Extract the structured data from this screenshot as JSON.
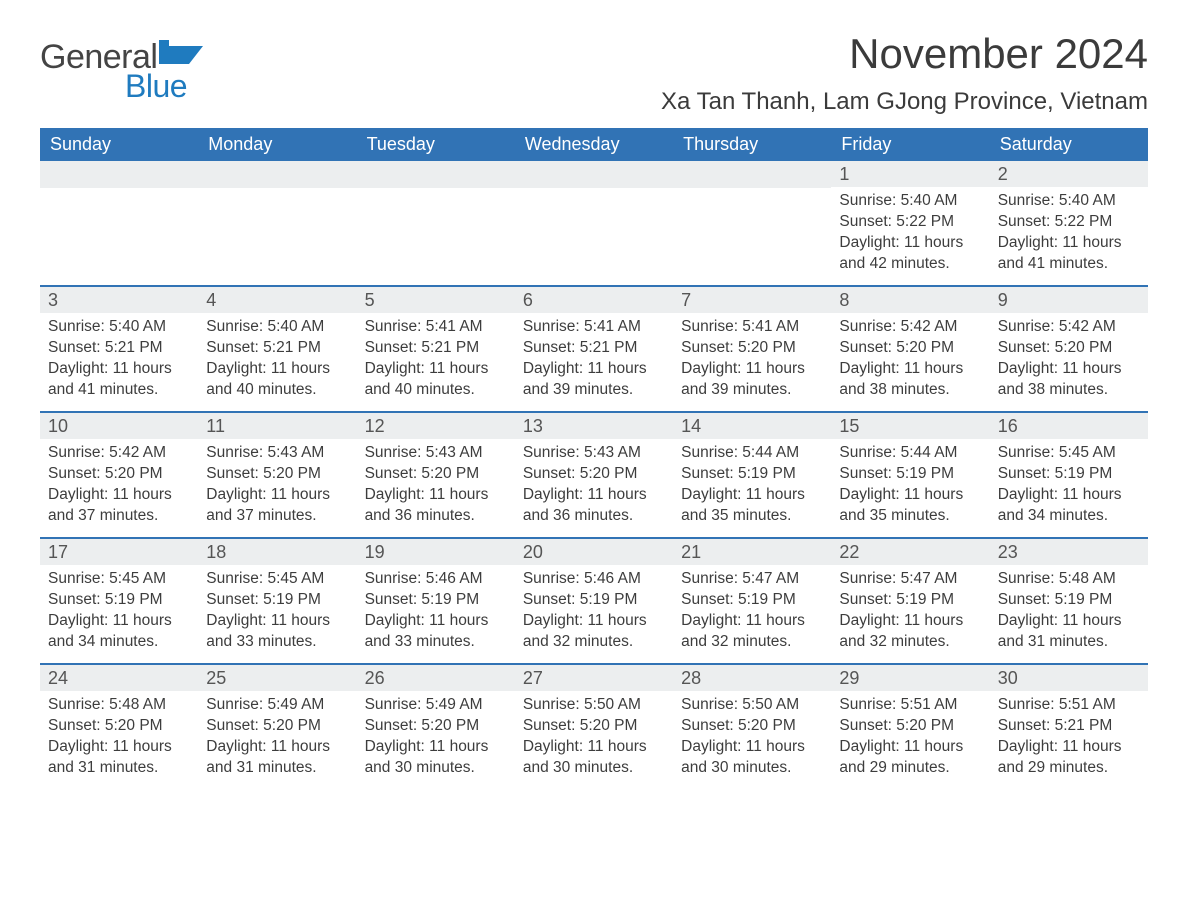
{
  "brand": {
    "word1": "General",
    "word2": "Blue",
    "accent_color": "#1f7bbf"
  },
  "title": {
    "month": "November 2024",
    "location": "Xa Tan Thanh, Lam GJong Province, Vietnam"
  },
  "colors": {
    "header_bg": "#3173b5",
    "header_text": "#ffffff",
    "daynum_bg": "#eceeef",
    "week_divider": "#3173b5",
    "body_text": "#3d3d3d",
    "page_bg": "#ffffff"
  },
  "typography": {
    "month_title_fontsize": 42,
    "location_fontsize": 24,
    "dow_fontsize": 18,
    "daynum_fontsize": 18,
    "body_fontsize": 15.5
  },
  "dow": [
    "Sunday",
    "Monday",
    "Tuesday",
    "Wednesday",
    "Thursday",
    "Friday",
    "Saturday"
  ],
  "labels": {
    "sunrise": "Sunrise:",
    "sunset": "Sunset:",
    "daylight": "Daylight:"
  },
  "weeks": [
    [
      null,
      null,
      null,
      null,
      null,
      {
        "n": "1",
        "sunrise": "5:40 AM",
        "sunset": "5:22 PM",
        "daylight": "11 hours and 42 minutes."
      },
      {
        "n": "2",
        "sunrise": "5:40 AM",
        "sunset": "5:22 PM",
        "daylight": "11 hours and 41 minutes."
      }
    ],
    [
      {
        "n": "3",
        "sunrise": "5:40 AM",
        "sunset": "5:21 PM",
        "daylight": "11 hours and 41 minutes."
      },
      {
        "n": "4",
        "sunrise": "5:40 AM",
        "sunset": "5:21 PM",
        "daylight": "11 hours and 40 minutes."
      },
      {
        "n": "5",
        "sunrise": "5:41 AM",
        "sunset": "5:21 PM",
        "daylight": "11 hours and 40 minutes."
      },
      {
        "n": "6",
        "sunrise": "5:41 AM",
        "sunset": "5:21 PM",
        "daylight": "11 hours and 39 minutes."
      },
      {
        "n": "7",
        "sunrise": "5:41 AM",
        "sunset": "5:20 PM",
        "daylight": "11 hours and 39 minutes."
      },
      {
        "n": "8",
        "sunrise": "5:42 AM",
        "sunset": "5:20 PM",
        "daylight": "11 hours and 38 minutes."
      },
      {
        "n": "9",
        "sunrise": "5:42 AM",
        "sunset": "5:20 PM",
        "daylight": "11 hours and 38 minutes."
      }
    ],
    [
      {
        "n": "10",
        "sunrise": "5:42 AM",
        "sunset": "5:20 PM",
        "daylight": "11 hours and 37 minutes."
      },
      {
        "n": "11",
        "sunrise": "5:43 AM",
        "sunset": "5:20 PM",
        "daylight": "11 hours and 37 minutes."
      },
      {
        "n": "12",
        "sunrise": "5:43 AM",
        "sunset": "5:20 PM",
        "daylight": "11 hours and 36 minutes."
      },
      {
        "n": "13",
        "sunrise": "5:43 AM",
        "sunset": "5:20 PM",
        "daylight": "11 hours and 36 minutes."
      },
      {
        "n": "14",
        "sunrise": "5:44 AM",
        "sunset": "5:19 PM",
        "daylight": "11 hours and 35 minutes."
      },
      {
        "n": "15",
        "sunrise": "5:44 AM",
        "sunset": "5:19 PM",
        "daylight": "11 hours and 35 minutes."
      },
      {
        "n": "16",
        "sunrise": "5:45 AM",
        "sunset": "5:19 PM",
        "daylight": "11 hours and 34 minutes."
      }
    ],
    [
      {
        "n": "17",
        "sunrise": "5:45 AM",
        "sunset": "5:19 PM",
        "daylight": "11 hours and 34 minutes."
      },
      {
        "n": "18",
        "sunrise": "5:45 AM",
        "sunset": "5:19 PM",
        "daylight": "11 hours and 33 minutes."
      },
      {
        "n": "19",
        "sunrise": "5:46 AM",
        "sunset": "5:19 PM",
        "daylight": "11 hours and 33 minutes."
      },
      {
        "n": "20",
        "sunrise": "5:46 AM",
        "sunset": "5:19 PM",
        "daylight": "11 hours and 32 minutes."
      },
      {
        "n": "21",
        "sunrise": "5:47 AM",
        "sunset": "5:19 PM",
        "daylight": "11 hours and 32 minutes."
      },
      {
        "n": "22",
        "sunrise": "5:47 AM",
        "sunset": "5:19 PM",
        "daylight": "11 hours and 32 minutes."
      },
      {
        "n": "23",
        "sunrise": "5:48 AM",
        "sunset": "5:19 PM",
        "daylight": "11 hours and 31 minutes."
      }
    ],
    [
      {
        "n": "24",
        "sunrise": "5:48 AM",
        "sunset": "5:20 PM",
        "daylight": "11 hours and 31 minutes."
      },
      {
        "n": "25",
        "sunrise": "5:49 AM",
        "sunset": "5:20 PM",
        "daylight": "11 hours and 31 minutes."
      },
      {
        "n": "26",
        "sunrise": "5:49 AM",
        "sunset": "5:20 PM",
        "daylight": "11 hours and 30 minutes."
      },
      {
        "n": "27",
        "sunrise": "5:50 AM",
        "sunset": "5:20 PM",
        "daylight": "11 hours and 30 minutes."
      },
      {
        "n": "28",
        "sunrise": "5:50 AM",
        "sunset": "5:20 PM",
        "daylight": "11 hours and 30 minutes."
      },
      {
        "n": "29",
        "sunrise": "5:51 AM",
        "sunset": "5:20 PM",
        "daylight": "11 hours and 29 minutes."
      },
      {
        "n": "30",
        "sunrise": "5:51 AM",
        "sunset": "5:21 PM",
        "daylight": "11 hours and 29 minutes."
      }
    ]
  ]
}
